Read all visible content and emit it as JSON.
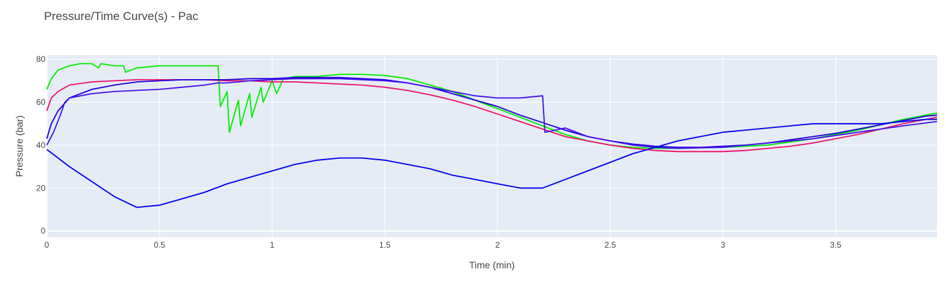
{
  "chart_data": {
    "type": "line",
    "title": "Pressure/Time Curve(s) - Pac",
    "xlabel": "Time (min)",
    "ylabel": "Pressure (bar)",
    "xlim": [
      0,
      3.95
    ],
    "ylim": [
      -3,
      82
    ],
    "xticks": [
      0,
      0.5,
      1,
      1.5,
      2,
      2.5,
      3,
      3.5
    ],
    "xtick_labels": [
      "0",
      "0.5",
      "1",
      "1.5",
      "2",
      "2.5",
      "3",
      "3.5"
    ],
    "yticks": [
      0,
      20,
      40,
      60,
      80
    ],
    "ytick_labels": [
      "0",
      "20",
      "40",
      "60",
      "80"
    ],
    "grid": true,
    "plot_background": "#e5ecf6",
    "series": [
      {
        "color": "#00ee00",
        "x": [
          0,
          0.02,
          0.05,
          0.1,
          0.15,
          0.2,
          0.23,
          0.24,
          0.3,
          0.34,
          0.35,
          0.4,
          0.5,
          0.6,
          0.7,
          0.76,
          0.77,
          0.8,
          0.81,
          0.85,
          0.86,
          0.9,
          0.91,
          0.95,
          0.96,
          1.0,
          1.02,
          1.05,
          1.1,
          1.2,
          1.3,
          1.4,
          1.5,
          1.6,
          1.7,
          1.8,
          1.9,
          2.0,
          2.1,
          2.2,
          2.3,
          2.4,
          2.5,
          2.6,
          2.7,
          2.8,
          3.0,
          3.2,
          3.4,
          3.6,
          3.8,
          3.95
        ],
        "y": [
          66,
          71,
          75,
          77,
          78,
          78,
          76,
          78,
          77,
          77,
          74,
          76,
          77,
          77,
          77,
          77,
          58,
          65,
          46,
          61,
          49,
          64,
          53,
          67,
          60,
          70,
          64,
          71,
          72,
          72,
          73,
          73,
          72.5,
          71,
          68,
          65,
          61,
          57,
          53,
          49,
          45,
          42,
          40,
          39,
          38.5,
          38.5,
          39,
          40,
          43,
          47,
          52,
          55
        ]
      },
      {
        "color": "#ee1166",
        "x": [
          0,
          0.02,
          0.05,
          0.1,
          0.2,
          0.3,
          0.4,
          0.5,
          0.6,
          0.7,
          0.8,
          0.9,
          1.0,
          1.1,
          1.2,
          1.3,
          1.4,
          1.5,
          1.6,
          1.7,
          1.8,
          1.9,
          2.0,
          2.1,
          2.2,
          2.3,
          2.4,
          2.5,
          2.6,
          2.7,
          2.8,
          2.9,
          3.0,
          3.1,
          3.2,
          3.3,
          3.4,
          3.5,
          3.6,
          3.7,
          3.8,
          3.9,
          3.95
        ],
        "y": [
          56,
          62,
          65,
          68,
          69.5,
          70,
          70.5,
          70.5,
          70.5,
          70.5,
          70,
          70,
          69.5,
          69.5,
          69,
          68.5,
          68,
          67,
          65.5,
          63.5,
          61,
          58,
          54.5,
          51,
          47.5,
          44,
          42,
          40,
          38.5,
          37.5,
          37,
          37,
          37,
          37.5,
          38.5,
          39.5,
          41,
          43,
          45,
          47.5,
          50,
          52,
          53
        ]
      },
      {
        "color": "#2200dd",
        "x": [
          0,
          0.02,
          0.05,
          0.1,
          0.2,
          0.3,
          0.4,
          0.5,
          0.6,
          0.7,
          0.8,
          0.9,
          1.0,
          1.1,
          1.2,
          1.3,
          1.4,
          1.5,
          1.6,
          1.7,
          1.8,
          1.9,
          2.0,
          2.1,
          2.2,
          2.3,
          2.4,
          2.5,
          2.6,
          2.7,
          2.8,
          2.9,
          3.0,
          3.1,
          3.2,
          3.3,
          3.4,
          3.5,
          3.6,
          3.7,
          3.8,
          3.9,
          3.95
        ],
        "y": [
          43,
          50,
          56,
          62,
          66,
          68,
          69.5,
          70,
          70.5,
          70.5,
          70.5,
          71,
          71,
          71.5,
          71.5,
          71.5,
          71,
          70.5,
          69,
          67,
          64,
          61,
          58,
          54,
          50.5,
          47,
          44,
          42,
          40.5,
          39.5,
          39,
          39,
          39.5,
          40,
          41,
          42.5,
          44,
          45.5,
          47.5,
          49.5,
          51.5,
          53.5,
          54
        ]
      },
      {
        "color": "#4411ee",
        "x": [
          0,
          0.03,
          0.06,
          0.08,
          0.1,
          0.2,
          0.3,
          0.4,
          0.5,
          0.6,
          0.7,
          0.76,
          0.8,
          0.9,
          1.0,
          1.1,
          1.2,
          1.3,
          1.4,
          1.5,
          1.6,
          1.7,
          1.8,
          1.9,
          2.0,
          2.1,
          2.2,
          2.21,
          2.3,
          2.4,
          2.5,
          2.6,
          2.7,
          2.8,
          3.0,
          3.2,
          3.4,
          3.6,
          3.8,
          3.95
        ],
        "y": [
          40,
          46,
          54,
          60,
          62,
          64,
          65,
          65.5,
          66,
          67,
          68,
          69,
          69,
          70,
          70.5,
          71,
          71,
          71,
          70.5,
          70,
          69,
          67,
          65,
          63,
          62,
          62,
          63,
          46,
          48,
          44,
          42,
          40,
          39,
          38.5,
          39,
          41,
          43,
          46,
          49,
          51
        ]
      },
      {
        "color": "#0000ee",
        "x": [
          0,
          0.05,
          0.1,
          0.2,
          0.3,
          0.4,
          0.5,
          0.6,
          0.7,
          0.8,
          0.9,
          1.0,
          1.1,
          1.2,
          1.3,
          1.4,
          1.5,
          1.6,
          1.7,
          1.8,
          1.9,
          2.0,
          2.1,
          2.2,
          2.3,
          2.4,
          2.5,
          2.6,
          2.7,
          2.8,
          2.9,
          3.0,
          3.1,
          3.2,
          3.3,
          3.4,
          3.5,
          3.6,
          3.7,
          3.8,
          3.9,
          3.95
        ],
        "y": [
          38,
          34,
          30,
          23,
          16,
          11,
          12,
          15,
          18,
          22,
          25,
          28,
          31,
          33,
          34,
          34,
          33,
          31,
          29,
          26,
          24,
          22,
          20,
          20,
          24,
          28,
          32,
          36,
          39,
          42,
          44,
          46,
          47,
          48,
          49,
          50,
          50,
          50,
          50,
          51,
          52,
          52
        ]
      }
    ]
  }
}
